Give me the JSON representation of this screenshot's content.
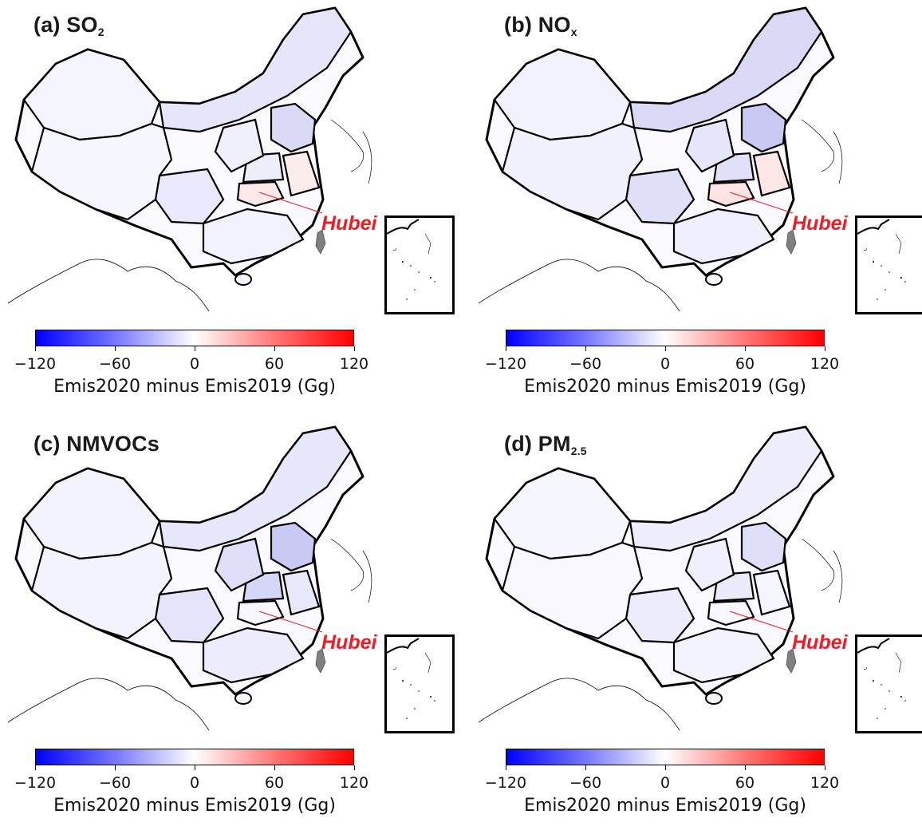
{
  "panels": [
    {
      "id": "a",
      "title_main": "(a) SO",
      "title_sub": "2",
      "province_colors": [
        "#f4f4fe",
        "#e6e6fb",
        "#dadaf7",
        "#fde9e9",
        "#eeeefb",
        "#f0f0fd",
        "#e9e9fb",
        "#f2f2fe",
        "#fceded",
        "#f6f6fe"
      ]
    },
    {
      "id": "b",
      "title_main": "(b) NO",
      "title_sub": "x",
      "province_colors": [
        "#f2f2fe",
        "#d9d9f6",
        "#c8c8f3",
        "#fde3e3",
        "#e0e0f8",
        "#e6e6fa",
        "#dfdff8",
        "#eeeefc",
        "#fde6e6",
        "#f1f1fd"
      ]
    },
    {
      "id": "c",
      "title_main": "(c) NMVOCs",
      "title_sub": "",
      "province_colors": [
        "#f3f3fe",
        "#e7e7fb",
        "#c9c9f3",
        "#f7f7fe",
        "#d6d6f6",
        "#dedef8",
        "#e4e4fa",
        "#ececfc",
        "#e8e8fb",
        "#f3f3fe"
      ]
    },
    {
      "id": "d",
      "title_main": "(d) PM",
      "title_sub": "2.5",
      "province_colors": [
        "#f6f6fe",
        "#ededfc",
        "#dedef8",
        "#f8f8fe",
        "#eaeafb",
        "#efeffd",
        "#ececfc",
        "#f3f3fe",
        "#f5f5fe",
        "#f8f8fe"
      ]
    }
  ],
  "colorbar": {
    "ticks": [
      "−120",
      "−60",
      "0",
      "60",
      "120"
    ],
    "tick_values": [
      -120,
      -60,
      0,
      60,
      120
    ],
    "range": [
      -120,
      120
    ],
    "label": "Emis2020 minus Emis2019 (Gg)",
    "low_color": "#0000ff",
    "mid_color": "#ffffff",
    "high_color": "#ff0000"
  },
  "annotation": {
    "label": "Hubei",
    "color": "#ee1c24"
  },
  "taiwan_color": "#808080"
}
